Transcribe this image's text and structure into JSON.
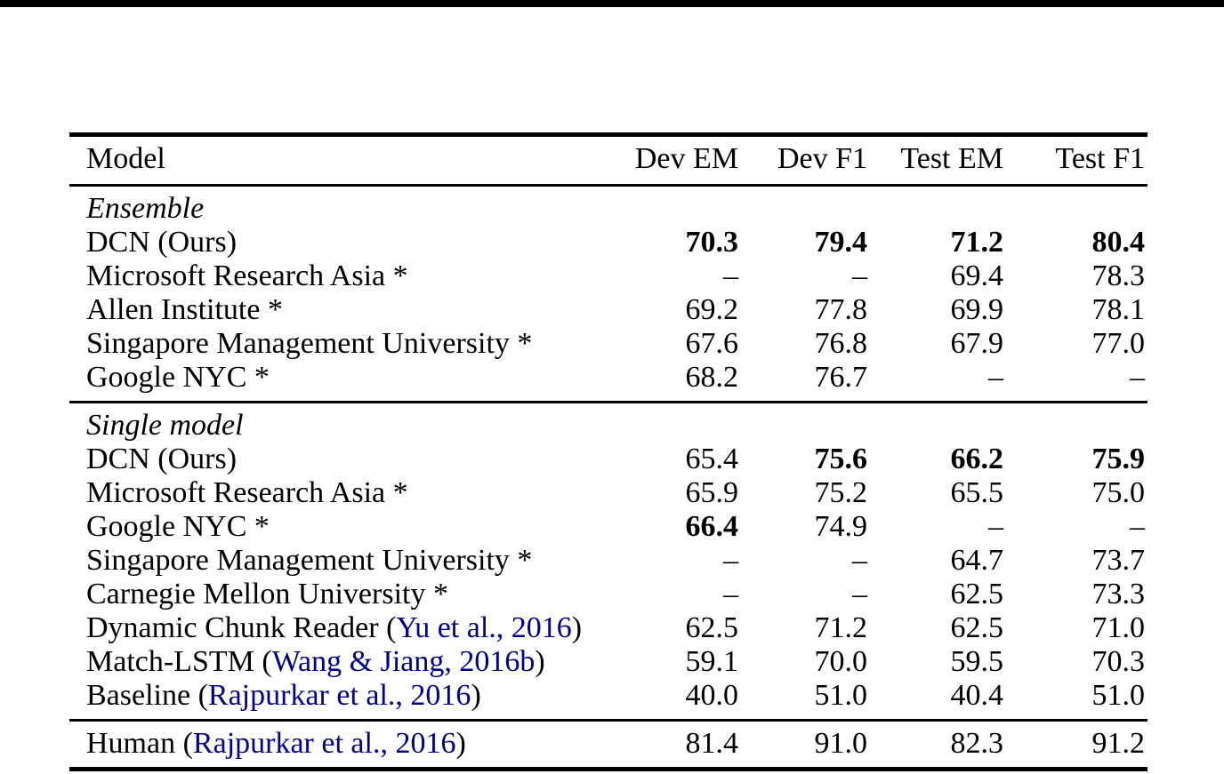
{
  "page": {
    "background": "#ffffff",
    "text_color": "#000000",
    "top_rule_color": "#000000",
    "citation_color": "#00008B"
  },
  "table": {
    "columns": [
      "Model",
      "Dev EM",
      "Dev F1",
      "Test EM",
      "Test F1"
    ],
    "dash": "–",
    "sections": [
      {
        "label": "Ensemble",
        "rows": [
          {
            "model": [
              {
                "text": "DCN (Ours)"
              }
            ],
            "values": [
              "70.3",
              "79.4",
              "71.2",
              "80.4"
            ],
            "bold": [
              true,
              true,
              true,
              true
            ]
          },
          {
            "model": [
              {
                "text": "Microsoft Research Asia *"
              }
            ],
            "values": [
              "–",
              "–",
              "69.4",
              "78.3"
            ],
            "bold": [
              false,
              false,
              false,
              false
            ]
          },
          {
            "model": [
              {
                "text": "Allen Institute *"
              }
            ],
            "values": [
              "69.2",
              "77.8",
              "69.9",
              "78.1"
            ],
            "bold": [
              false,
              false,
              false,
              false
            ]
          },
          {
            "model": [
              {
                "text": "Singapore Management University *"
              }
            ],
            "values": [
              "67.6",
              "76.8",
              "67.9",
              "77.0"
            ],
            "bold": [
              false,
              false,
              false,
              false
            ]
          },
          {
            "model": [
              {
                "text": "Google NYC *"
              }
            ],
            "values": [
              "68.2",
              "76.7",
              "–",
              "–"
            ],
            "bold": [
              false,
              false,
              false,
              false
            ]
          }
        ]
      },
      {
        "label": "Single model",
        "rows": [
          {
            "model": [
              {
                "text": "DCN (Ours)"
              }
            ],
            "values": [
              "65.4",
              "75.6",
              "66.2",
              "75.9"
            ],
            "bold": [
              false,
              true,
              true,
              true
            ]
          },
          {
            "model": [
              {
                "text": "Microsoft Research Asia *"
              }
            ],
            "values": [
              "65.9",
              "75.2",
              "65.5",
              "75.0"
            ],
            "bold": [
              false,
              false,
              false,
              false
            ]
          },
          {
            "model": [
              {
                "text": "Google NYC *"
              }
            ],
            "values": [
              "66.4",
              "74.9",
              "–",
              "–"
            ],
            "bold": [
              true,
              false,
              false,
              false
            ]
          },
          {
            "model": [
              {
                "text": "Singapore Management University *"
              }
            ],
            "values": [
              "–",
              "–",
              "64.7",
              "73.7"
            ],
            "bold": [
              false,
              false,
              false,
              false
            ]
          },
          {
            "model": [
              {
                "text": "Carnegie Mellon University *"
              }
            ],
            "values": [
              "–",
              "–",
              "62.5",
              "73.3"
            ],
            "bold": [
              false,
              false,
              false,
              false
            ]
          },
          {
            "model": [
              {
                "text": "Dynamic Chunk Reader ("
              },
              {
                "text": "Yu et al., 2016",
                "cite": true
              },
              {
                "text": ")"
              }
            ],
            "values": [
              "62.5",
              "71.2",
              "62.5",
              "71.0"
            ],
            "bold": [
              false,
              false,
              false,
              false
            ]
          },
          {
            "model": [
              {
                "text": "Match-LSTM ("
              },
              {
                "text": "Wang & Jiang, 2016b",
                "cite": true
              },
              {
                "text": ")"
              }
            ],
            "values": [
              "59.1",
              "70.0",
              "59.5",
              "70.3"
            ],
            "bold": [
              false,
              false,
              false,
              false
            ]
          },
          {
            "model": [
              {
                "text": "Baseline ("
              },
              {
                "text": "Rajpurkar et al., 2016",
                "cite": true
              },
              {
                "text": ")"
              }
            ],
            "values": [
              "40.0",
              "51.0",
              "40.4",
              "51.0"
            ],
            "bold": [
              false,
              false,
              false,
              false
            ]
          }
        ]
      },
      {
        "label": null,
        "rows": [
          {
            "model": [
              {
                "text": "Human ("
              },
              {
                "text": "Rajpurkar et al., 2016",
                "cite": true
              },
              {
                "text": ")"
              }
            ],
            "values": [
              "81.4",
              "91.0",
              "82.3",
              "91.2"
            ],
            "bold": [
              false,
              false,
              false,
              false
            ]
          }
        ]
      }
    ]
  }
}
